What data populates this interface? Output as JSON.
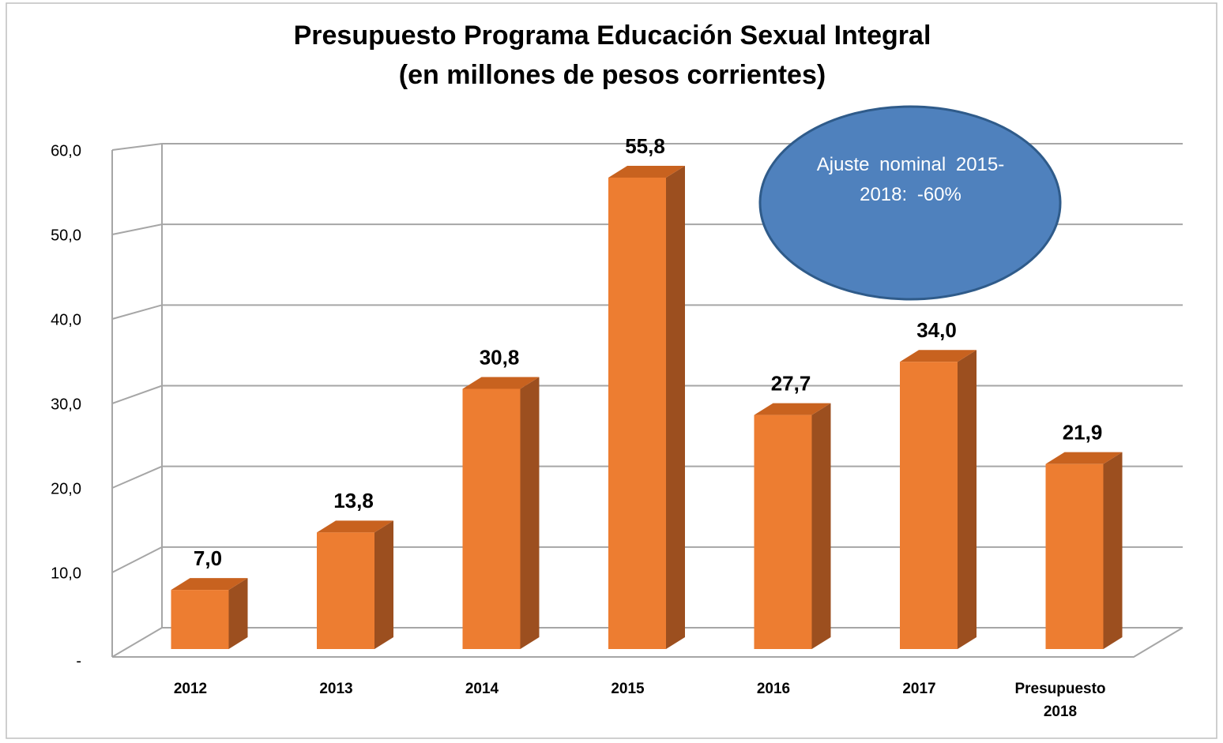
{
  "chart_data": {
    "type": "bar3d",
    "title": "Presupuesto Programa Educación Sexual Integral",
    "subtitle": "(en millones de pesos corrientes)",
    "categories": [
      "2012",
      "2013",
      "2014",
      "2015",
      "2016",
      "2017",
      "Presupuesto 2018"
    ],
    "values": [
      7.0,
      13.8,
      30.8,
      55.8,
      27.7,
      34.0,
      21.9
    ],
    "value_labels": [
      "7,0",
      "13,8",
      "30,8",
      "55,8",
      "27,7",
      "34,0",
      "21,9"
    ],
    "color": "#ed7d31",
    "ylim": [
      0,
      60
    ],
    "yticks": [
      {
        "value": 0,
        "label": "-"
      },
      {
        "value": 10,
        "label": "10,0"
      },
      {
        "value": 20,
        "label": "20,0"
      },
      {
        "value": 30,
        "label": "30,0"
      },
      {
        "value": 40,
        "label": "40,0"
      },
      {
        "value": 50,
        "label": "50,0"
      },
      {
        "value": 60,
        "label": "60,0"
      }
    ],
    "grid": true,
    "annotation": "Ajuste nominal 2015-2018: -60%"
  }
}
